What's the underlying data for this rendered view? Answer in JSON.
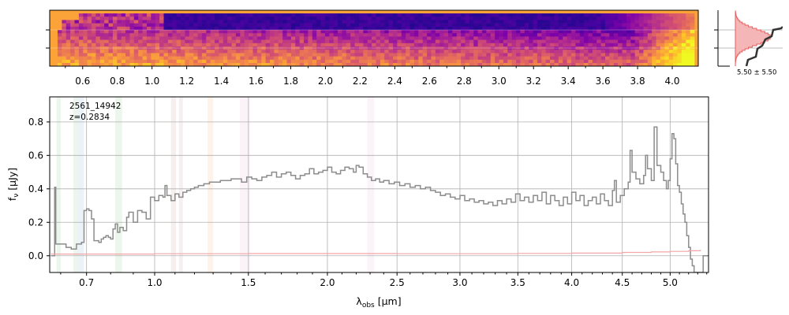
{
  "chart_data": [
    {
      "type": "heatmap",
      "panel": "2d-spectrum",
      "colormap": "plasma",
      "background_color": "#fba238",
      "x_ticks_um": [
        0.6,
        0.8,
        1.0,
        1.2,
        1.4,
        1.6,
        1.8,
        2.0,
        2.2,
        2.4,
        2.6,
        2.8,
        3.0,
        3.2,
        3.4,
        3.6,
        3.8,
        4.0
      ],
      "x_tick_labels": [
        "0.6",
        "0.8",
        "1.0",
        "1.2",
        "1.4",
        "1.6",
        "1.8",
        "2.0",
        "2.2",
        "2.4",
        "2.6",
        "2.8",
        "3.0",
        "3.2",
        "3.4",
        "3.6",
        "3.8",
        "4.0"
      ],
      "xlim_um": [
        0.41,
        4.15
      ]
    },
    {
      "type": "area",
      "panel": "spatial-profile",
      "label": "5.50 ± 5.50",
      "profile_color": "#333333",
      "fill_color": "#f4b6b6",
      "edge_color": "#e66060"
    },
    {
      "type": "line",
      "panel": "1d-spectrum",
      "annotation": [
        "2561_14942",
        "z=0.2834"
      ],
      "xlabel_main": "λ",
      "xlabel_sub": "obs",
      "xlabel_unit": " [μm]",
      "ylabel_main": "f",
      "ylabel_sub": "ν",
      "ylabel_unit": " [μJy]",
      "xscale": "sqrt",
      "xlim": [
        0.56,
        5.42
      ],
      "ylim": [
        -0.1,
        0.95
      ],
      "grid": true,
      "x_ticks": [
        0.7,
        1.0,
        1.5,
        2.0,
        2.5,
        3.0,
        3.5,
        4.0,
        4.5,
        5.0
      ],
      "x_tick_labels": [
        "0.7",
        "1.0",
        "1.5",
        "2.0",
        "2.5",
        "3.0",
        "3.5",
        "4.0",
        "4.5",
        "5.0"
      ],
      "y_ticks": [
        0.0,
        0.2,
        0.4,
        0.6,
        0.8
      ],
      "y_tick_labels": [
        "0.0",
        "0.2",
        "0.4",
        "0.6",
        "0.8"
      ],
      "line_bands": [
        {
          "x0": 0.585,
          "x1": 0.6,
          "color": "#2ca02c"
        },
        {
          "x0": 0.648,
          "x1": 0.665,
          "color": "#2ca02c"
        },
        {
          "x0": 0.665,
          "x1": 0.69,
          "color": "#1f77b4"
        },
        {
          "x0": 0.82,
          "x1": 0.85,
          "color": "#2ca02c"
        },
        {
          "x0": 1.08,
          "x1": 1.105,
          "color": "#8c564b"
        },
        {
          "x0": 1.12,
          "x1": 1.14,
          "color": "#8c564b"
        },
        {
          "x0": 1.27,
          "x1": 1.3,
          "color": "#ff7f0e"
        },
        {
          "x0": 1.45,
          "x1": 1.51,
          "color": "#e377c2"
        },
        {
          "x0": 2.28,
          "x1": 2.33,
          "color": "#e377c2"
        }
      ],
      "series": [
        {
          "color": "#8c8c8c",
          "points": [
            [
              0.565,
              0.0
            ],
            [
              0.572,
              0.0
            ],
            [
              0.578,
              0.41
            ],
            [
              0.582,
              0.07
            ],
            [
              0.6,
              0.07
            ],
            [
              0.62,
              0.05
            ],
            [
              0.64,
              0.04
            ],
            [
              0.66,
              0.07
            ],
            [
              0.68,
              0.08
            ],
            [
              0.69,
              0.27
            ],
            [
              0.7,
              0.28
            ],
            [
              0.71,
              0.27
            ],
            [
              0.72,
              0.22
            ],
            [
              0.73,
              0.09
            ],
            [
              0.75,
              0.08
            ],
            [
              0.76,
              0.1
            ],
            [
              0.77,
              0.11
            ],
            [
              0.78,
              0.12
            ],
            [
              0.79,
              0.11
            ],
            [
              0.8,
              0.1
            ],
            [
              0.81,
              0.16
            ],
            [
              0.82,
              0.19
            ],
            [
              0.83,
              0.14
            ],
            [
              0.84,
              0.17
            ],
            [
              0.855,
              0.15
            ],
            [
              0.87,
              0.23
            ],
            [
              0.88,
              0.26
            ],
            [
              0.9,
              0.2
            ],
            [
              0.92,
              0.27
            ],
            [
              0.94,
              0.26
            ],
            [
              0.96,
              0.22
            ],
            [
              0.98,
              0.35
            ],
            [
              1.0,
              0.33
            ],
            [
              1.02,
              0.36
            ],
            [
              1.04,
              0.35
            ],
            [
              1.05,
              0.42
            ],
            [
              1.06,
              0.36
            ],
            [
              1.08,
              0.33
            ],
            [
              1.1,
              0.37
            ],
            [
              1.12,
              0.35
            ],
            [
              1.14,
              0.38
            ],
            [
              1.16,
              0.39
            ],
            [
              1.18,
              0.4
            ],
            [
              1.2,
              0.41
            ],
            [
              1.22,
              0.42
            ],
            [
              1.25,
              0.43
            ],
            [
              1.28,
              0.44
            ],
            [
              1.31,
              0.44
            ],
            [
              1.34,
              0.45
            ],
            [
              1.37,
              0.45
            ],
            [
              1.4,
              0.46
            ],
            [
              1.43,
              0.46
            ],
            [
              1.46,
              0.44
            ],
            [
              1.49,
              0.47
            ],
            [
              1.52,
              0.46
            ],
            [
              1.55,
              0.45
            ],
            [
              1.58,
              0.47
            ],
            [
              1.61,
              0.48
            ],
            [
              1.64,
              0.5
            ],
            [
              1.67,
              0.47
            ],
            [
              1.7,
              0.49
            ],
            [
              1.73,
              0.5
            ],
            [
              1.76,
              0.48
            ],
            [
              1.79,
              0.46
            ],
            [
              1.82,
              0.48
            ],
            [
              1.85,
              0.49
            ],
            [
              1.88,
              0.52
            ],
            [
              1.91,
              0.49
            ],
            [
              1.94,
              0.5
            ],
            [
              1.97,
              0.51
            ],
            [
              2.0,
              0.53
            ],
            [
              2.03,
              0.5
            ],
            [
              2.06,
              0.49
            ],
            [
              2.09,
              0.51
            ],
            [
              2.12,
              0.53
            ],
            [
              2.15,
              0.52
            ],
            [
              2.18,
              0.5
            ],
            [
              2.2,
              0.54
            ],
            [
              2.22,
              0.53
            ],
            [
              2.25,
              0.49
            ],
            [
              2.28,
              0.47
            ],
            [
              2.31,
              0.45
            ],
            [
              2.34,
              0.46
            ],
            [
              2.37,
              0.44
            ],
            [
              2.4,
              0.45
            ],
            [
              2.44,
              0.43
            ],
            [
              2.48,
              0.44
            ],
            [
              2.52,
              0.42
            ],
            [
              2.56,
              0.43
            ],
            [
              2.6,
              0.41
            ],
            [
              2.64,
              0.42
            ],
            [
              2.68,
              0.4
            ],
            [
              2.72,
              0.41
            ],
            [
              2.76,
              0.39
            ],
            [
              2.8,
              0.38
            ],
            [
              2.84,
              0.36
            ],
            [
              2.88,
              0.37
            ],
            [
              2.92,
              0.35
            ],
            [
              2.96,
              0.34
            ],
            [
              3.0,
              0.36
            ],
            [
              3.04,
              0.33
            ],
            [
              3.08,
              0.34
            ],
            [
              3.12,
              0.32
            ],
            [
              3.16,
              0.33
            ],
            [
              3.2,
              0.31
            ],
            [
              3.24,
              0.32
            ],
            [
              3.28,
              0.3
            ],
            [
              3.32,
              0.33
            ],
            [
              3.36,
              0.31
            ],
            [
              3.4,
              0.34
            ],
            [
              3.44,
              0.32
            ],
            [
              3.48,
              0.37
            ],
            [
              3.52,
              0.33
            ],
            [
              3.56,
              0.35
            ],
            [
              3.6,
              0.32
            ],
            [
              3.64,
              0.36
            ],
            [
              3.68,
              0.33
            ],
            [
              3.72,
              0.38
            ],
            [
              3.76,
              0.31
            ],
            [
              3.8,
              0.36
            ],
            [
              3.84,
              0.33
            ],
            [
              3.88,
              0.3
            ],
            [
              3.92,
              0.35
            ],
            [
              3.96,
              0.31
            ],
            [
              4.0,
              0.38
            ],
            [
              4.04,
              0.33
            ],
            [
              4.08,
              0.36
            ],
            [
              4.12,
              0.3
            ],
            [
              4.16,
              0.33
            ],
            [
              4.2,
              0.35
            ],
            [
              4.24,
              0.31
            ],
            [
              4.28,
              0.37
            ],
            [
              4.32,
              0.33
            ],
            [
              4.36,
              0.3
            ],
            [
              4.4,
              0.39
            ],
            [
              4.42,
              0.45
            ],
            [
              4.44,
              0.32
            ],
            [
              4.48,
              0.36
            ],
            [
              4.52,
              0.4
            ],
            [
              4.56,
              0.44
            ],
            [
              4.58,
              0.63
            ],
            [
              4.6,
              0.5
            ],
            [
              4.64,
              0.46
            ],
            [
              4.68,
              0.43
            ],
            [
              4.72,
              0.48
            ],
            [
              4.74,
              0.6
            ],
            [
              4.76,
              0.52
            ],
            [
              4.8,
              0.45
            ],
            [
              4.83,
              0.77
            ],
            [
              4.86,
              0.54
            ],
            [
              4.9,
              0.5
            ],
            [
              4.93,
              0.45
            ],
            [
              4.96,
              0.4
            ],
            [
              4.98,
              0.45
            ],
            [
              5.0,
              0.58
            ],
            [
              5.02,
              0.73
            ],
            [
              5.04,
              0.7
            ],
            [
              5.06,
              0.55
            ],
            [
              5.08,
              0.42
            ],
            [
              5.1,
              0.38
            ],
            [
              5.12,
              0.31
            ],
            [
              5.14,
              0.25
            ],
            [
              5.16,
              0.2
            ],
            [
              5.18,
              0.12
            ],
            [
              5.2,
              0.05
            ],
            [
              5.22,
              -0.02
            ],
            [
              5.24,
              -0.06
            ],
            [
              5.26,
              -0.1
            ],
            [
              5.3,
              -0.1
            ],
            [
              5.33,
              -0.1
            ],
            [
              5.36,
              0.0
            ],
            [
              5.42,
              0.0
            ]
          ]
        },
        {
          "color": "#f4a6a6",
          "points": [
            [
              0.565,
              0.01
            ],
            [
              0.8,
              0.01
            ],
            [
              1.0,
              0.012
            ],
            [
              1.5,
              0.013
            ],
            [
              2.0,
              0.013
            ],
            [
              2.5,
              0.012
            ],
            [
              3.0,
              0.012
            ],
            [
              3.5,
              0.014
            ],
            [
              4.0,
              0.016
            ],
            [
              4.5,
              0.02
            ],
            [
              4.8,
              0.023
            ],
            [
              5.0,
              0.026
            ],
            [
              5.2,
              0.03
            ],
            [
              5.33,
              0.035
            ]
          ]
        }
      ]
    }
  ]
}
